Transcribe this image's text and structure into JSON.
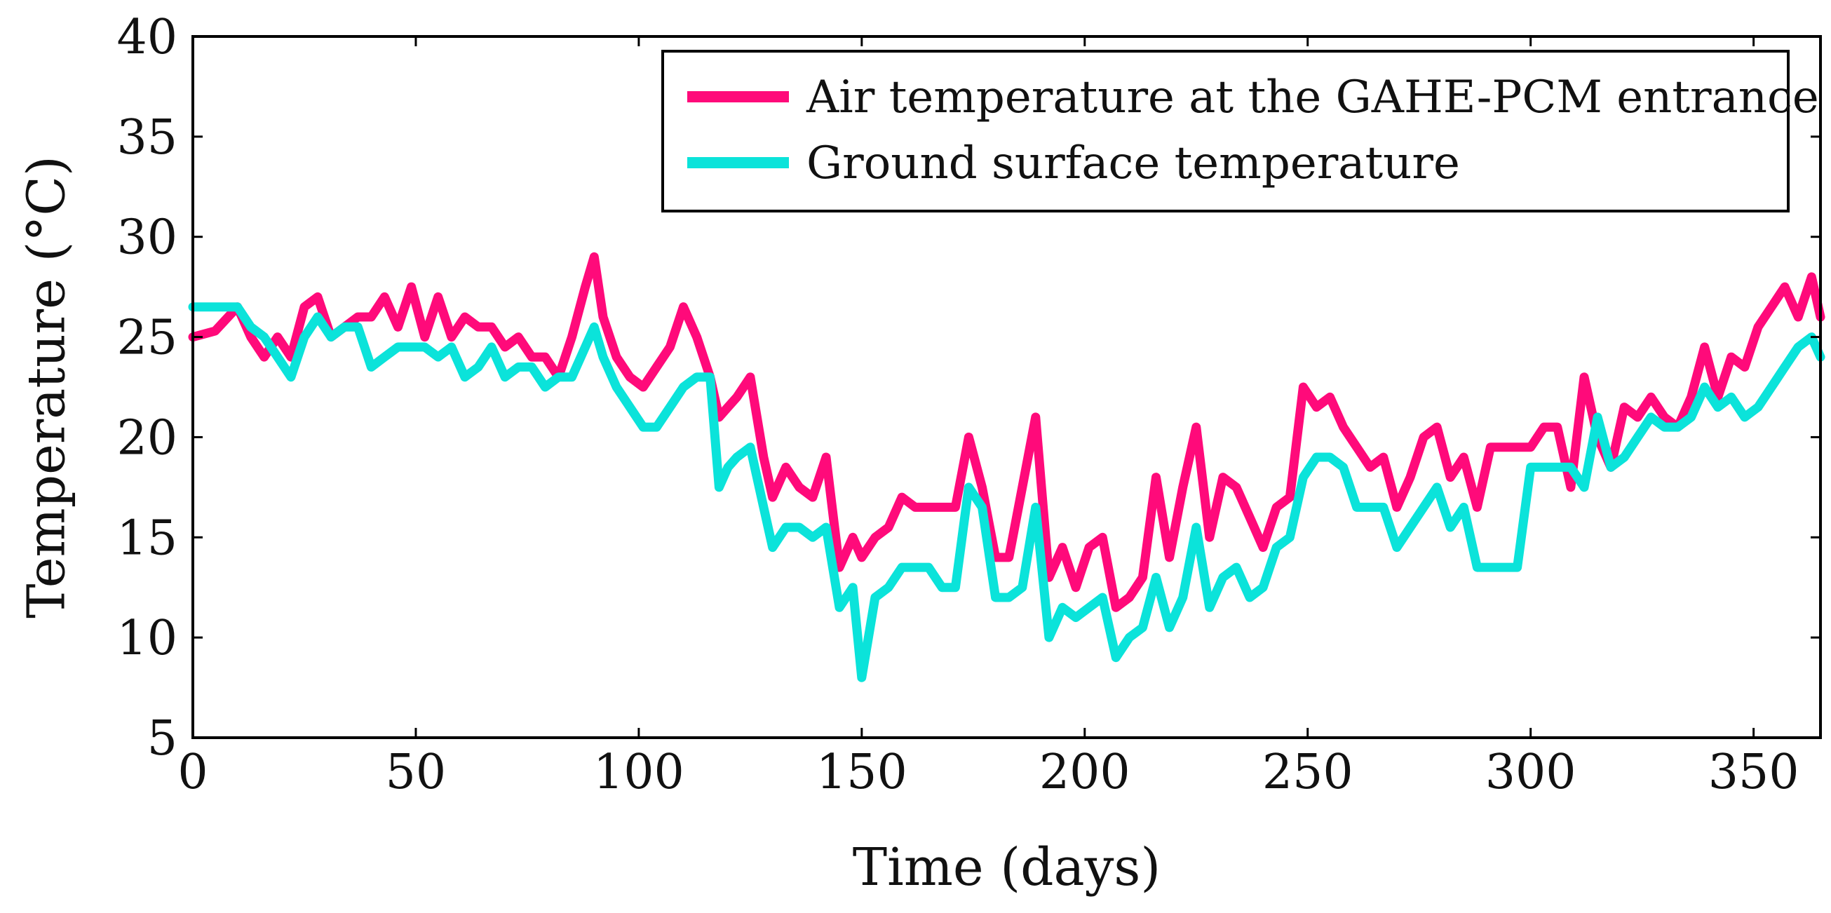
{
  "chart_data": {
    "type": "line",
    "xlabel": "Time (days)",
    "ylabel": "Temperature (°C)",
    "xlim": [
      0,
      365
    ],
    "ylim": [
      5,
      40
    ],
    "xticks": [
      0,
      50,
      100,
      150,
      200,
      250,
      300,
      350
    ],
    "yticks": [
      5,
      10,
      15,
      20,
      25,
      30,
      35,
      40
    ],
    "grid": false,
    "legend_position": "top-right",
    "series": [
      {
        "name": "Air temperature at the GAHE-PCM entrance",
        "color": "#ff0a7a",
        "x": [
          0,
          5,
          10,
          13,
          16,
          19,
          22,
          25,
          28,
          31,
          34,
          37,
          40,
          43,
          46,
          49,
          52,
          55,
          58,
          61,
          64,
          67,
          70,
          73,
          76,
          79,
          82,
          85,
          88,
          90,
          92,
          95,
          98,
          101,
          104,
          107,
          110,
          113,
          116,
          118,
          120,
          122,
          125,
          128,
          130,
          133,
          136,
          139,
          142,
          145,
          148,
          150,
          153,
          156,
          159,
          162,
          165,
          168,
          171,
          174,
          177,
          180,
          183,
          186,
          189,
          192,
          195,
          198,
          201,
          204,
          207,
          210,
          213,
          216,
          219,
          222,
          225,
          228,
          231,
          234,
          237,
          240,
          243,
          246,
          249,
          252,
          255,
          258,
          261,
          264,
          267,
          270,
          273,
          276,
          279,
          282,
          285,
          288,
          291,
          294,
          297,
          300,
          303,
          306,
          309,
          312,
          315,
          318,
          321,
          324,
          327,
          330,
          333,
          336,
          339,
          342,
          345,
          348,
          351,
          354,
          357,
          360,
          363,
          365
        ],
        "y": [
          25,
          25.3,
          26.5,
          25,
          24,
          25,
          24,
          26.5,
          27,
          25,
          25.5,
          26,
          26,
          27,
          25.5,
          27.5,
          25,
          27,
          25,
          26,
          25.5,
          25.5,
          24.5,
          25,
          24,
          24,
          23,
          25,
          27.5,
          29,
          26,
          24,
          23,
          22.5,
          23.5,
          24.5,
          26.5,
          25,
          23,
          21,
          21.5,
          22,
          23,
          19,
          17,
          18.5,
          17.5,
          17,
          19,
          13.5,
          15,
          14,
          15,
          15.5,
          17,
          16.5,
          16.5,
          16.5,
          16.5,
          20,
          17.5,
          14,
          14,
          17.5,
          21,
          13,
          14.5,
          12.5,
          14.5,
          15,
          11.5,
          12,
          13,
          18,
          14,
          17.5,
          20.5,
          15,
          18,
          17.5,
          16,
          14.5,
          16.5,
          17,
          22.5,
          21.5,
          22,
          20.5,
          19.5,
          18.5,
          19,
          16.5,
          18,
          20,
          20.5,
          18,
          19,
          16.5,
          19.5,
          19.5,
          19.5,
          19.5,
          20.5,
          20.5,
          17.5,
          23,
          20,
          18.5,
          21.5,
          21,
          22,
          21,
          20.5,
          22,
          24.5,
          22,
          24,
          23.5,
          25.5,
          26.5,
          27.5,
          26,
          28,
          26
        ]
      },
      {
        "name": "Ground surface temperature",
        "color": "#0be3da",
        "x": [
          0,
          5,
          10,
          13,
          16,
          19,
          22,
          25,
          28,
          31,
          34,
          37,
          40,
          43,
          46,
          49,
          52,
          55,
          58,
          61,
          64,
          67,
          70,
          73,
          76,
          79,
          82,
          85,
          88,
          90,
          92,
          95,
          98,
          101,
          104,
          107,
          110,
          113,
          116,
          118,
          120,
          122,
          125,
          128,
          130,
          133,
          136,
          139,
          142,
          145,
          148,
          150,
          153,
          156,
          159,
          162,
          165,
          168,
          171,
          174,
          177,
          180,
          183,
          186,
          189,
          192,
          195,
          198,
          201,
          204,
          207,
          210,
          213,
          216,
          219,
          222,
          225,
          228,
          231,
          234,
          237,
          240,
          243,
          246,
          249,
          252,
          255,
          258,
          261,
          264,
          267,
          270,
          273,
          276,
          279,
          282,
          285,
          288,
          291,
          294,
          297,
          300,
          303,
          306,
          309,
          312,
          315,
          318,
          321,
          324,
          327,
          330,
          333,
          336,
          339,
          342,
          345,
          348,
          351,
          354,
          357,
          360,
          363,
          365
        ],
        "y": [
          26.5,
          26.5,
          26.5,
          25.5,
          25,
          24,
          23,
          25,
          26,
          25,
          25.5,
          25.5,
          23.5,
          24,
          24.5,
          24.5,
          24.5,
          24,
          24.5,
          23,
          23.5,
          24.5,
          23,
          23.5,
          23.5,
          22.5,
          23,
          23,
          24.5,
          25.5,
          24,
          22.5,
          21.5,
          20.5,
          20.5,
          21.5,
          22.5,
          23,
          23,
          17.5,
          18.5,
          19,
          19.5,
          16.5,
          14.5,
          15.5,
          15.5,
          15,
          15.5,
          11.5,
          12.5,
          8,
          12,
          12.5,
          13.5,
          13.5,
          13.5,
          12.5,
          12.5,
          17.5,
          16.5,
          12,
          12,
          12.5,
          16.5,
          10,
          11.5,
          11,
          11.5,
          12,
          9,
          10,
          10.5,
          13,
          10.5,
          12,
          15.5,
          11.5,
          13,
          13.5,
          12,
          12.5,
          14.5,
          15,
          18,
          19,
          19,
          18.5,
          16.5,
          16.5,
          16.5,
          14.5,
          15.5,
          16.5,
          17.5,
          15.5,
          16.5,
          13.5,
          13.5,
          13.5,
          13.5,
          18.5,
          18.5,
          18.5,
          18.5,
          17.5,
          21,
          18.5,
          19,
          20,
          21,
          20.5,
          20.5,
          21,
          22.5,
          21.5,
          22,
          21,
          21.5,
          22.5,
          23.5,
          24.5,
          25,
          24
        ]
      }
    ]
  }
}
